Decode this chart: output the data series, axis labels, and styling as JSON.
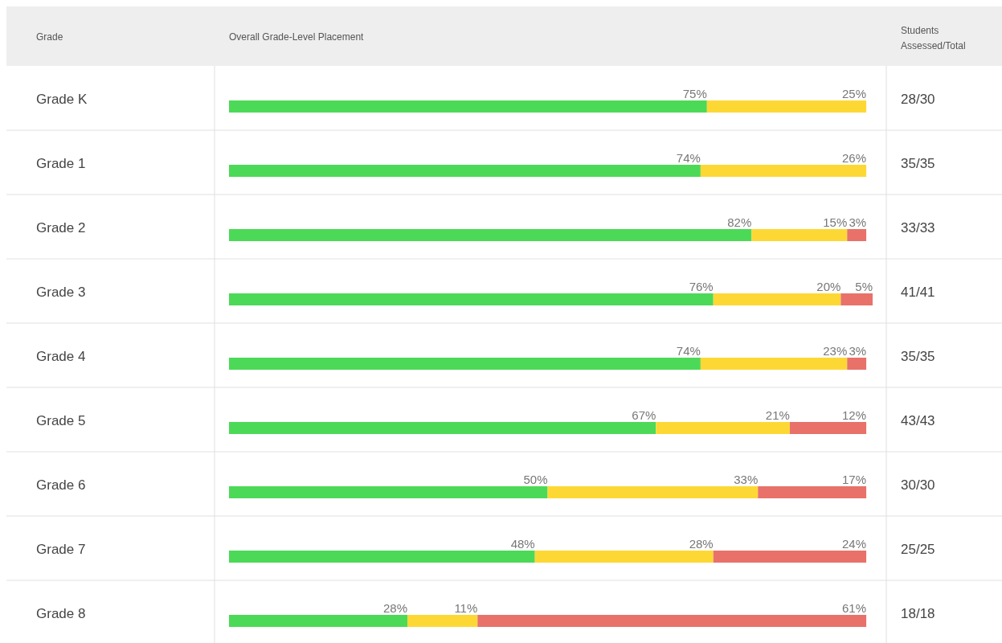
{
  "chart_data": {
    "type": "bar",
    "orientation": "horizontal",
    "stacked": true,
    "ylabel": "Grade",
    "xlabel": "Overall Grade-Level Placement",
    "y2label": "Students Assessed/Total",
    "categories": [
      "Grade K",
      "Grade 1",
      "Grade 2",
      "Grade 3",
      "Grade 4",
      "Grade 5",
      "Grade 6",
      "Grade 7",
      "Grade 8"
    ],
    "series": [
      {
        "color": "#4cd957",
        "values": [
          75,
          74,
          82,
          76,
          74,
          67,
          50,
          48,
          28
        ],
        "value_labels": [
          "75%",
          "74%",
          "82%",
          "76%",
          "74%",
          "67%",
          "50%",
          "48%",
          "28%"
        ]
      },
      {
        "color": "#fdd835",
        "values": [
          25,
          26,
          15,
          20,
          23,
          21,
          33,
          28,
          11
        ],
        "value_labels": [
          "25%",
          "26%",
          "15%",
          "20%",
          "23%",
          "21%",
          "33%",
          "28%",
          "11%"
        ]
      },
      {
        "color": "#e8716a",
        "values": [
          null,
          null,
          3,
          5,
          3,
          12,
          17,
          24,
          61
        ],
        "value_labels": [
          null,
          null,
          "3%",
          "5%",
          "3%",
          "12%",
          "17%",
          "24%",
          "61%"
        ]
      }
    ],
    "annotations": [
      "28/30",
      "35/35",
      "33/33",
      "41/41",
      "35/35",
      "43/43",
      "30/30",
      "25/25",
      "18/18"
    ]
  }
}
